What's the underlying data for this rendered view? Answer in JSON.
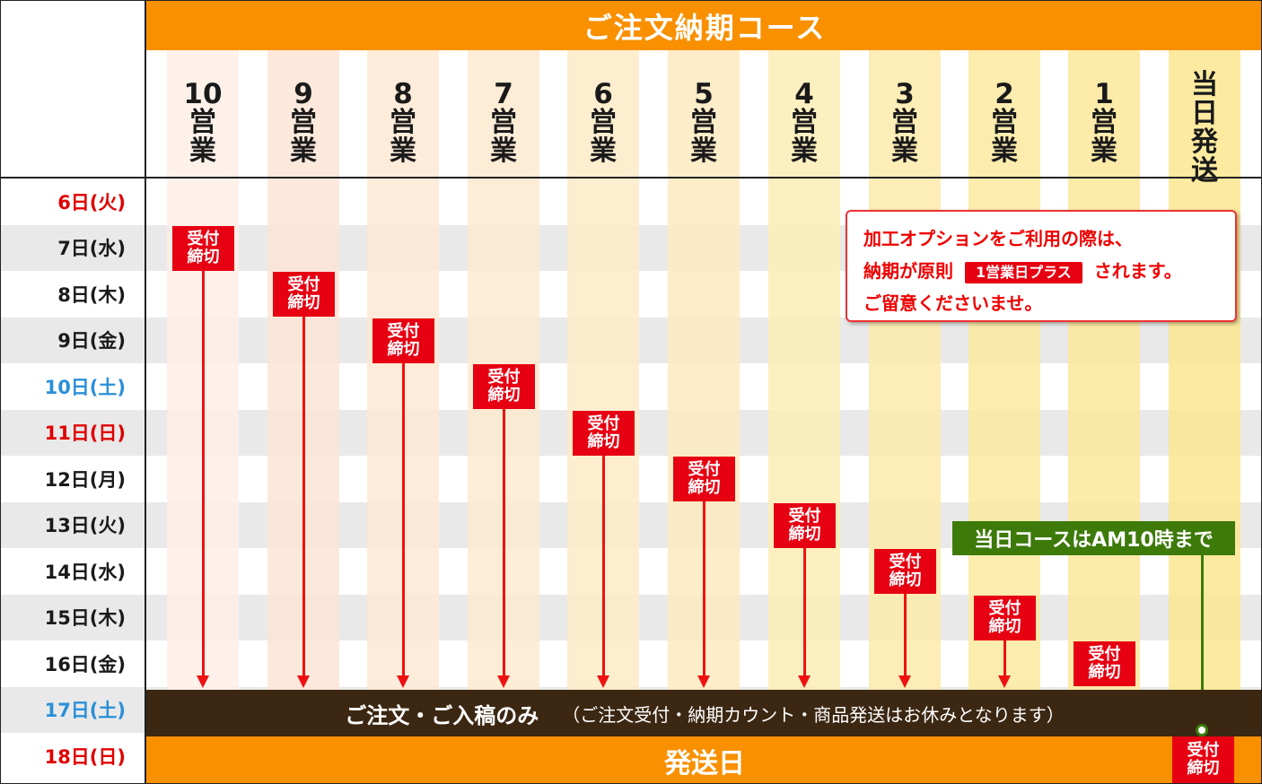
{
  "header": {
    "title": "ご注文納期コース"
  },
  "courses": [
    {
      "num": "10",
      "chars": [
        "営",
        "業"
      ]
    },
    {
      "num": "9",
      "chars": [
        "営",
        "業"
      ]
    },
    {
      "num": "8",
      "chars": [
        "営",
        "業"
      ]
    },
    {
      "num": "7",
      "chars": [
        "営",
        "業"
      ]
    },
    {
      "num": "6",
      "chars": [
        "営",
        "業"
      ]
    },
    {
      "num": "5",
      "chars": [
        "営",
        "業"
      ]
    },
    {
      "num": "4",
      "chars": [
        "営",
        "業"
      ]
    },
    {
      "num": "3",
      "chars": [
        "営",
        "業"
      ]
    },
    {
      "num": "2",
      "chars": [
        "営",
        "業"
      ]
    },
    {
      "num": "1",
      "chars": [
        "営",
        "業"
      ]
    },
    {
      "num": "",
      "chars": [
        "当",
        "日",
        "発",
        "送"
      ]
    }
  ],
  "dates": [
    {
      "label": "6日(火)",
      "color": "#e00000"
    },
    {
      "label": "7日(水)",
      "color": "#1a1a1a"
    },
    {
      "label": "8日(木)",
      "color": "#1a1a1a"
    },
    {
      "label": "9日(金)",
      "color": "#1a1a1a"
    },
    {
      "label": "10日(土)",
      "color": "#2a8fd8"
    },
    {
      "label": "11日(日)",
      "color": "#e00000"
    },
    {
      "label": "12日(月)",
      "color": "#1a1a1a"
    },
    {
      "label": "13日(火)",
      "color": "#1a1a1a"
    },
    {
      "label": "14日(水)",
      "color": "#1a1a1a"
    },
    {
      "label": "15日(木)",
      "color": "#1a1a1a"
    },
    {
      "label": "16日(金)",
      "color": "#1a1a1a"
    },
    {
      "label": "17日(土)",
      "color": "#2a8fd8"
    },
    {
      "label": "18日(日)",
      "color": "#e00000"
    }
  ],
  "deadline": {
    "line1": "受付",
    "line2": "締切"
  },
  "note": {
    "line1": "加工オプションをご利用の際は、",
    "line2_pre": "納期が原則",
    "badge": "1営業日プラス",
    "line2_post": "されます。",
    "line3": "ご留意くださいませ。"
  },
  "same_day_note": "当日コースはAM10時まで",
  "rest_bar": {
    "main": "ご注文・ご入稿のみ",
    "sub": "（ご注文受付・納期カウント・商品発送はお休みとなります）"
  },
  "ship_bar": {
    "label": "発送日"
  },
  "colors": {
    "orange": "#f89000",
    "red": "#e60012",
    "green": "#3d7a0a",
    "brown": "#3b2712"
  }
}
